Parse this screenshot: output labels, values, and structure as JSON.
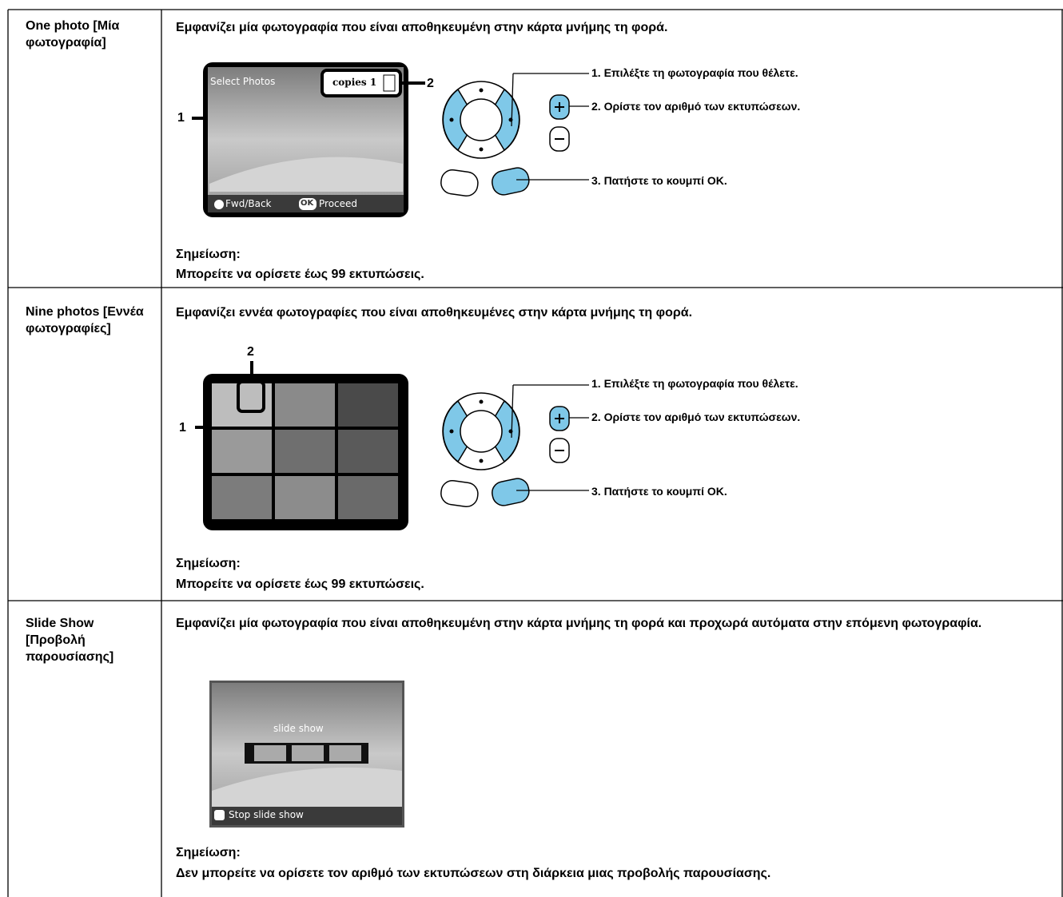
{
  "rows": [
    {
      "label": "One photo [Μία φωτογραφία]",
      "description": "Εμφανίζει μία φωτογραφία που είναι αποθηκευμένη στην κάρτα μνήμης τη φορά.",
      "screen": {
        "title": "Select Photos",
        "copies": "copies 1",
        "fwd_back": "Fwd/Back",
        "ok": "OK",
        "proceed": "Proceed"
      },
      "callouts": [
        "1",
        "2"
      ],
      "steps": [
        "1. Επιλέξτε τη φωτογραφία που θέλετε.",
        "2. Ορίστε τον αριθμό των εκτυπώσεων.",
        "3. Πατήστε το κουμπί OK."
      ],
      "note": {
        "title": "Σημείωση:",
        "text": "Μπορείτε να ορίσετε έως 99 εκτυπώσεις."
      }
    },
    {
      "label": "Nine photos [Εννέα φωτογραφίες]",
      "description": "Εμφανίζει εννέα φωτογραφίες που είναι αποθηκευμένες στην κάρτα μνήμης τη φορά.",
      "callouts": [
        "1",
        "2"
      ],
      "steps": [
        "1. Επιλέξτε τη φωτογραφία που θέλετε.",
        "2. Ορίστε τον αριθμό των εκτυπώσεων.",
        "3. Πατήστε το κουμπί OK."
      ],
      "note": {
        "title": "Σημείωση:",
        "text": "Μπορείτε να ορίσετε έως 99 εκτυπώσεις."
      }
    },
    {
      "label": "Slide Show [Προβολή παρουσίασης]",
      "description": "Εμφανίζει μία φωτογραφία που είναι αποθηκευμένη στην κάρτα μνήμης τη φορά και προχωρά αυτόματα στην επόμενη φωτογραφία.",
      "screen": {
        "title": "slide show",
        "stop": "Stop slide show"
      },
      "note": {
        "title": "Σημείωση:",
        "text": "Δεν μπορείτε να ορίσετε τον αριθμό των εκτυπώσεων στη διάρκεια μιας προβολής παρουσίασης."
      }
    }
  ]
}
